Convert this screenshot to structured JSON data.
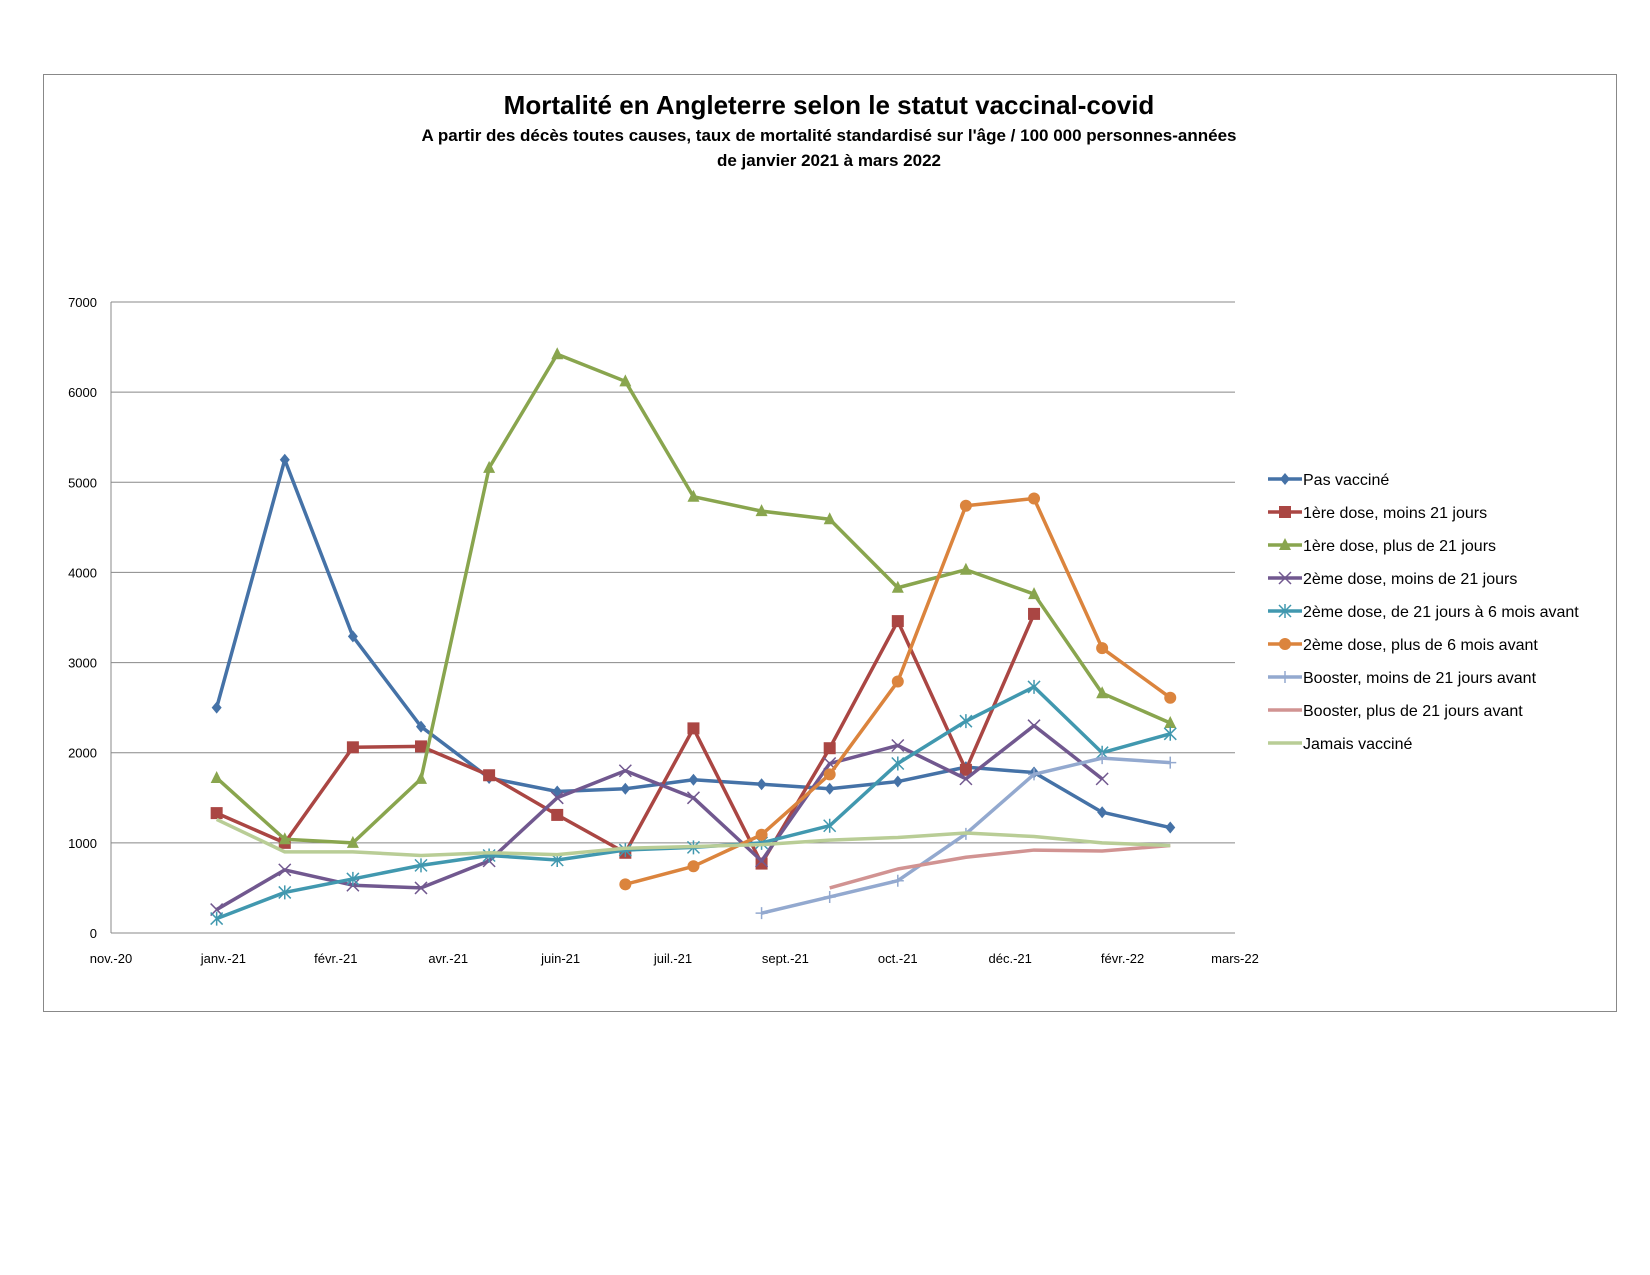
{
  "chart_data": {
    "type": "line",
    "title": "Mortalité en Angleterre selon le statut vaccinal-covid",
    "subtitle": [
      "A partir des décès toutes causes, taux de mortalité standardisé sur l'âge / 100 000 personnes-années",
      "de janvier 2021 à mars 2022"
    ],
    "xlabel": "",
    "ylabel": "",
    "ylim": [
      0,
      7000
    ],
    "yticks": [
      "0",
      "1000",
      "2000",
      "3000",
      "4000",
      "5000",
      "6000",
      "7000"
    ],
    "xtick_labels": [
      "nov.-20",
      "janv.-21",
      "févr.-21",
      "avr.-21",
      "juin-21",
      "juil.-21",
      "sept.-21",
      "oct.-21",
      "déc.-21",
      "févr.-22",
      "mars-22"
    ],
    "x": [
      "2021-01",
      "2021-02",
      "2021-03",
      "2021-04",
      "2021-05",
      "2021-06",
      "2021-07",
      "2021-08",
      "2021-09",
      "2021-10",
      "2021-11",
      "2021-12",
      "2022-01",
      "2022-02",
      "2022-03"
    ],
    "grid": "horizontal",
    "legend": "right",
    "series": [
      {
        "name": "Pas vacciné",
        "color": "#4572A7",
        "marker": "diamond",
        "values": [
          2500,
          5250,
          3290,
          2290,
          1720,
          1570,
          1600,
          1700,
          1650,
          1600,
          1680,
          1840,
          1780,
          1340,
          1170
        ]
      },
      {
        "name": "1ère dose, moins 21 jours",
        "color": "#AA4643",
        "marker": "square",
        "values": [
          1330,
          1000,
          2060,
          2070,
          1750,
          1310,
          890,
          2270,
          770,
          2050,
          3460,
          1810,
          3540,
          null,
          null
        ]
      },
      {
        "name": "1ère dose, plus de 21 jours",
        "color": "#89A54E",
        "marker": "triangle",
        "values": [
          1720,
          1040,
          1000,
          1710,
          5160,
          6420,
          6120,
          4840,
          4680,
          4590,
          3830,
          4030,
          3760,
          2660,
          2330
        ]
      },
      {
        "name": "2ème dose, moins de 21 jours",
        "color": "#71588F",
        "marker": "x",
        "values": [
          260,
          700,
          530,
          500,
          800,
          1500,
          1800,
          1500,
          800,
          1880,
          2080,
          1710,
          2300,
          1710,
          null
        ]
      },
      {
        "name": "2ème dose, de 21 jours à 6 mois avant",
        "color": "#4198AF",
        "marker": "star",
        "values": [
          160,
          450,
          600,
          750,
          860,
          810,
          920,
          950,
          1000,
          1190,
          1880,
          2350,
          2730,
          2000,
          2210
        ]
      },
      {
        "name": "2ème dose, plus de 6 mois avant",
        "color": "#DB843D",
        "marker": "circle",
        "values": [
          null,
          null,
          null,
          null,
          null,
          null,
          540,
          740,
          1090,
          1760,
          2790,
          4740,
          4820,
          3160,
          2610
        ]
      },
      {
        "name": "Booster, moins de 21 jours avant",
        "color": "#93A9CF",
        "marker": "plus",
        "values": [
          null,
          null,
          null,
          null,
          null,
          null,
          null,
          null,
          220,
          400,
          580,
          1100,
          1760,
          1940,
          1890
        ]
      },
      {
        "name": "Booster, plus de 21 jours avant",
        "color": "#D19392",
        "marker": "none",
        "values": [
          null,
          null,
          null,
          null,
          null,
          null,
          null,
          null,
          null,
          500,
          710,
          840,
          920,
          910,
          970
        ]
      },
      {
        "name": "Jamais vacciné",
        "color": "#B9CD96",
        "marker": "none",
        "values": [
          1260,
          900,
          900,
          860,
          890,
          870,
          940,
          960,
          980,
          1030,
          1060,
          1110,
          1070,
          1000,
          970
        ]
      }
    ]
  }
}
